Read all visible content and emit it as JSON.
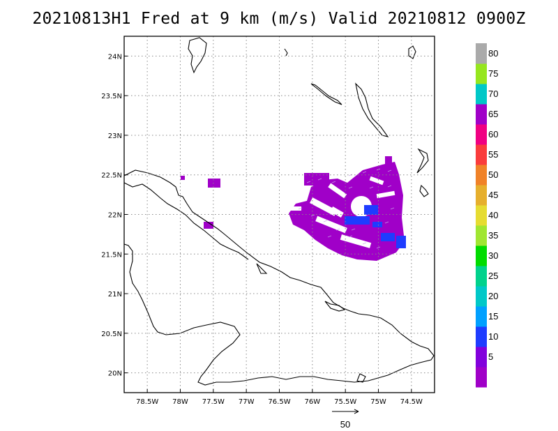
{
  "title": "20210813H1 Fred at 9 km (m/s) Valid 20210812 0900Z",
  "map": {
    "lon_ticks": [
      {
        "value": -78.5,
        "label": "78.5W"
      },
      {
        "value": -78.0,
        "label": "78W"
      },
      {
        "value": -77.5,
        "label": "77.5W"
      },
      {
        "value": -77.0,
        "label": "77W"
      },
      {
        "value": -76.5,
        "label": "76.5W"
      },
      {
        "value": -76.0,
        "label": "76W"
      },
      {
        "value": -75.5,
        "label": "75.5W"
      },
      {
        "value": -75.0,
        "label": "75W"
      },
      {
        "value": -74.5,
        "label": "74.5W"
      }
    ],
    "lat_ticks": [
      {
        "value": 24.0,
        "label": "24N"
      },
      {
        "value": 23.5,
        "label": "23.5N"
      },
      {
        "value": 23.0,
        "label": "23N"
      },
      {
        "value": 22.5,
        "label": "22.5N"
      },
      {
        "value": 22.0,
        "label": "22N"
      },
      {
        "value": 21.5,
        "label": "21.5N"
      },
      {
        "value": 21.0,
        "label": "21N"
      },
      {
        "value": 20.5,
        "label": "20.5N"
      },
      {
        "value": 20.0,
        "label": "20N"
      }
    ],
    "lon_range": [
      -78.85,
      -74.15
    ],
    "lat_range": [
      19.75,
      24.25
    ],
    "grid": "dotted",
    "coastline_color": "#000000",
    "reference_vector": {
      "value": 50,
      "label": "50"
    }
  },
  "colorbar": {
    "levels": [
      {
        "label": "",
        "color": "#a000c8"
      },
      {
        "label": "5",
        "color": "#8200dc"
      },
      {
        "label": "10",
        "color": "#1e3cff"
      },
      {
        "label": "15",
        "color": "#00a0ff"
      },
      {
        "label": "20",
        "color": "#00c8c8"
      },
      {
        "label": "25",
        "color": "#00d28c"
      },
      {
        "label": "30",
        "color": "#00dc00"
      },
      {
        "label": "35",
        "color": "#a0e632"
      },
      {
        "label": "40",
        "color": "#e6dc32"
      },
      {
        "label": "45",
        "color": "#e6af2d"
      },
      {
        "label": "50",
        "color": "#f08228"
      },
      {
        "label": "55",
        "color": "#fa3c3c"
      },
      {
        "label": "60",
        "color": "#f00082"
      },
      {
        "label": "65",
        "color": "#a000c8"
      },
      {
        "label": "70",
        "color": "#00c8c8"
      },
      {
        "label": "75",
        "color": "#96e61e"
      },
      {
        "label": "80",
        "color": "#aaaaaa"
      }
    ]
  }
}
